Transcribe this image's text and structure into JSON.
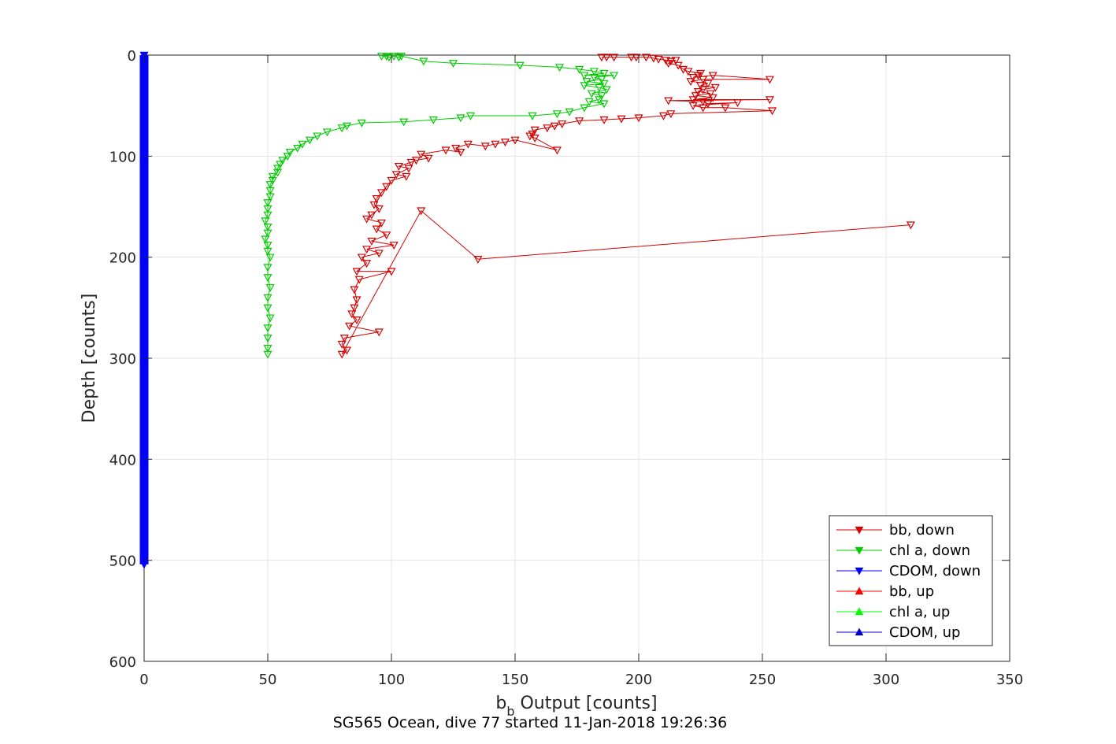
{
  "chart_data": {
    "type": "scatter",
    "xlabel_main": "b",
    "xlabel_sub": "b",
    "xlabel_rest": " Output [counts]",
    "ylabel": "Depth [counts]",
    "caption": "SG565 Ocean, dive 77 started 11-Jan-2018 19:26:36",
    "xlim": [
      0,
      350
    ],
    "ylim": [
      0,
      600
    ],
    "y_reversed": true,
    "grid": true,
    "xticks": [
      "0",
      "50",
      "100",
      "150",
      "200",
      "250",
      "300",
      "350"
    ],
    "yticks": [
      "0",
      "100",
      "200",
      "300",
      "400",
      "500",
      "600"
    ],
    "legend_position": "bottom-right",
    "colors": {
      "bb": "#d40000",
      "chl": "#00cc00",
      "cdom": "#0000ff"
    },
    "series": [
      {
        "name": "bb, down",
        "color": "#d40000",
        "marker": "triangle-down",
        "line": true,
        "points": [
          [
            185,
            2
          ],
          [
            187,
            2
          ],
          [
            190,
            2
          ],
          [
            197,
            2
          ],
          [
            199,
            2
          ],
          [
            203,
            2
          ],
          [
            206,
            3
          ],
          [
            208,
            4
          ],
          [
            211,
            5
          ],
          [
            213,
            6
          ],
          [
            215,
            5
          ],
          [
            212,
            8
          ],
          [
            216,
            10
          ],
          [
            218,
            14
          ],
          [
            220,
            16
          ],
          [
            225,
            18
          ],
          [
            224,
            20
          ],
          [
            222,
            22
          ],
          [
            230,
            20
          ],
          [
            253,
            24
          ],
          [
            226,
            24
          ],
          [
            221,
            26
          ],
          [
            228,
            28
          ],
          [
            225,
            30
          ],
          [
            231,
            32
          ],
          [
            226,
            34
          ],
          [
            224,
            36
          ],
          [
            229,
            38
          ],
          [
            223,
            40
          ],
          [
            230,
            42
          ],
          [
            222,
            44
          ],
          [
            253,
            44
          ],
          [
            212,
            45
          ],
          [
            226,
            46
          ],
          [
            228,
            48
          ],
          [
            240,
            47
          ],
          [
            222,
            50
          ],
          [
            226,
            52
          ],
          [
            235,
            52
          ],
          [
            254,
            55
          ],
          [
            213,
            58
          ],
          [
            210,
            60
          ],
          [
            200,
            62
          ],
          [
            193,
            63
          ],
          [
            186,
            64
          ],
          [
            176,
            65
          ],
          [
            169,
            68
          ],
          [
            166,
            70
          ],
          [
            163,
            72
          ],
          [
            158,
            74
          ],
          [
            157,
            78
          ],
          [
            156,
            80
          ],
          [
            158,
            82
          ],
          [
            167,
            94
          ],
          [
            150,
            84
          ],
          [
            146,
            86
          ],
          [
            142,
            88
          ],
          [
            138,
            90
          ],
          [
            131,
            88
          ],
          [
            126,
            92
          ],
          [
            128,
            96
          ],
          [
            122,
            94
          ],
          [
            112,
            98
          ],
          [
            115,
            102
          ],
          [
            110,
            104
          ],
          [
            108,
            106
          ],
          [
            103,
            110
          ],
          [
            107,
            112
          ],
          [
            102,
            118
          ],
          [
            106,
            120
          ],
          [
            100,
            124
          ],
          [
            98,
            130
          ],
          [
            96,
            136
          ],
          [
            94,
            142
          ],
          [
            93,
            148
          ],
          [
            95,
            152
          ],
          [
            92,
            158
          ],
          [
            90,
            162
          ],
          [
            96,
            166
          ],
          [
            94,
            172
          ],
          [
            98,
            178
          ],
          [
            92,
            184
          ],
          [
            101,
            188
          ],
          [
            90,
            192
          ],
          [
            95,
            196
          ],
          [
            88,
            200
          ],
          [
            90,
            206
          ],
          [
            86,
            214
          ],
          [
            100,
            214
          ],
          [
            87,
            222
          ],
          [
            85,
            232
          ],
          [
            86,
            242
          ],
          [
            85,
            250
          ],
          [
            84,
            256
          ],
          [
            86,
            262
          ],
          [
            83,
            268
          ],
          [
            95,
            274
          ],
          [
            81,
            280
          ],
          [
            80,
            286
          ],
          [
            82,
            292
          ],
          [
            80,
            296
          ],
          [
            112,
            154
          ],
          [
            135,
            202
          ],
          [
            310,
            168
          ]
        ]
      },
      {
        "name": "chl a, down",
        "color": "#00cc00",
        "marker": "triangle-down",
        "line": true,
        "points": [
          [
            96,
            1
          ],
          [
            98,
            1
          ],
          [
            99,
            2
          ],
          [
            101,
            1
          ],
          [
            103,
            2
          ],
          [
            104,
            1
          ],
          [
            113,
            6
          ],
          [
            125,
            8
          ],
          [
            152,
            10
          ],
          [
            168,
            12
          ],
          [
            176,
            14
          ],
          [
            182,
            16
          ],
          [
            186,
            18
          ],
          [
            178,
            20
          ],
          [
            190,
            20
          ],
          [
            182,
            22
          ],
          [
            185,
            24
          ],
          [
            179,
            26
          ],
          [
            186,
            28
          ],
          [
            178,
            30
          ],
          [
            184,
            32
          ],
          [
            187,
            34
          ],
          [
            181,
            38
          ],
          [
            185,
            40
          ],
          [
            184,
            44
          ],
          [
            180,
            46
          ],
          [
            186,
            48
          ],
          [
            178,
            52
          ],
          [
            172,
            56
          ],
          [
            167,
            58
          ],
          [
            157,
            60
          ],
          [
            132,
            60
          ],
          [
            128,
            62
          ],
          [
            117,
            64
          ],
          [
            105,
            66
          ],
          [
            88,
            67
          ],
          [
            82,
            70
          ],
          [
            80,
            72
          ],
          [
            74,
            76
          ],
          [
            70,
            80
          ],
          [
            67,
            84
          ],
          [
            64,
            88
          ],
          [
            62,
            92
          ],
          [
            59,
            96
          ],
          [
            58,
            100
          ],
          [
            56,
            104
          ],
          [
            55,
            108
          ],
          [
            54,
            112
          ],
          [
            54,
            116
          ],
          [
            52,
            120
          ],
          [
            52,
            124
          ],
          [
            51,
            128
          ],
          [
            51,
            134
          ],
          [
            51,
            140
          ],
          [
            50,
            146
          ],
          [
            50,
            152
          ],
          [
            50,
            158
          ],
          [
            49,
            164
          ],
          [
            50,
            170
          ],
          [
            50,
            176
          ],
          [
            49,
            182
          ],
          [
            50,
            188
          ],
          [
            50,
            194
          ],
          [
            51,
            200
          ],
          [
            50,
            210
          ],
          [
            50,
            220
          ],
          [
            51,
            230
          ],
          [
            50,
            240
          ],
          [
            50,
            250
          ],
          [
            51,
            260
          ],
          [
            50,
            270
          ],
          [
            50,
            280
          ],
          [
            50,
            290
          ],
          [
            50,
            296
          ]
        ]
      },
      {
        "name": "CDOM, down",
        "color": "#0000ff",
        "marker": "triangle-down",
        "line": true,
        "points": [
          [
            0,
            0
          ],
          [
            0,
            25
          ],
          [
            0,
            50
          ],
          [
            0,
            75
          ],
          [
            0,
            100
          ],
          [
            0,
            125
          ],
          [
            0,
            150
          ],
          [
            0,
            175
          ],
          [
            0,
            200
          ],
          [
            0,
            225
          ],
          [
            0,
            250
          ],
          [
            0,
            275
          ],
          [
            0,
            300
          ],
          [
            0,
            325
          ],
          [
            0,
            350
          ],
          [
            0,
            375
          ],
          [
            0,
            400
          ],
          [
            0,
            425
          ],
          [
            0,
            450
          ],
          [
            0,
            475
          ],
          [
            0,
            500
          ],
          [
            0,
            504
          ]
        ]
      },
      {
        "name": "bb, up",
        "color": "#ff0000",
        "marker": "triangle-up",
        "line": true,
        "points": []
      },
      {
        "name": "chl a, up",
        "color": "#00ff00",
        "marker": "triangle-up",
        "line": true,
        "points": []
      },
      {
        "name": "CDOM, up",
        "color": "#0000cc",
        "marker": "triangle-up",
        "line": true,
        "points": []
      }
    ]
  }
}
